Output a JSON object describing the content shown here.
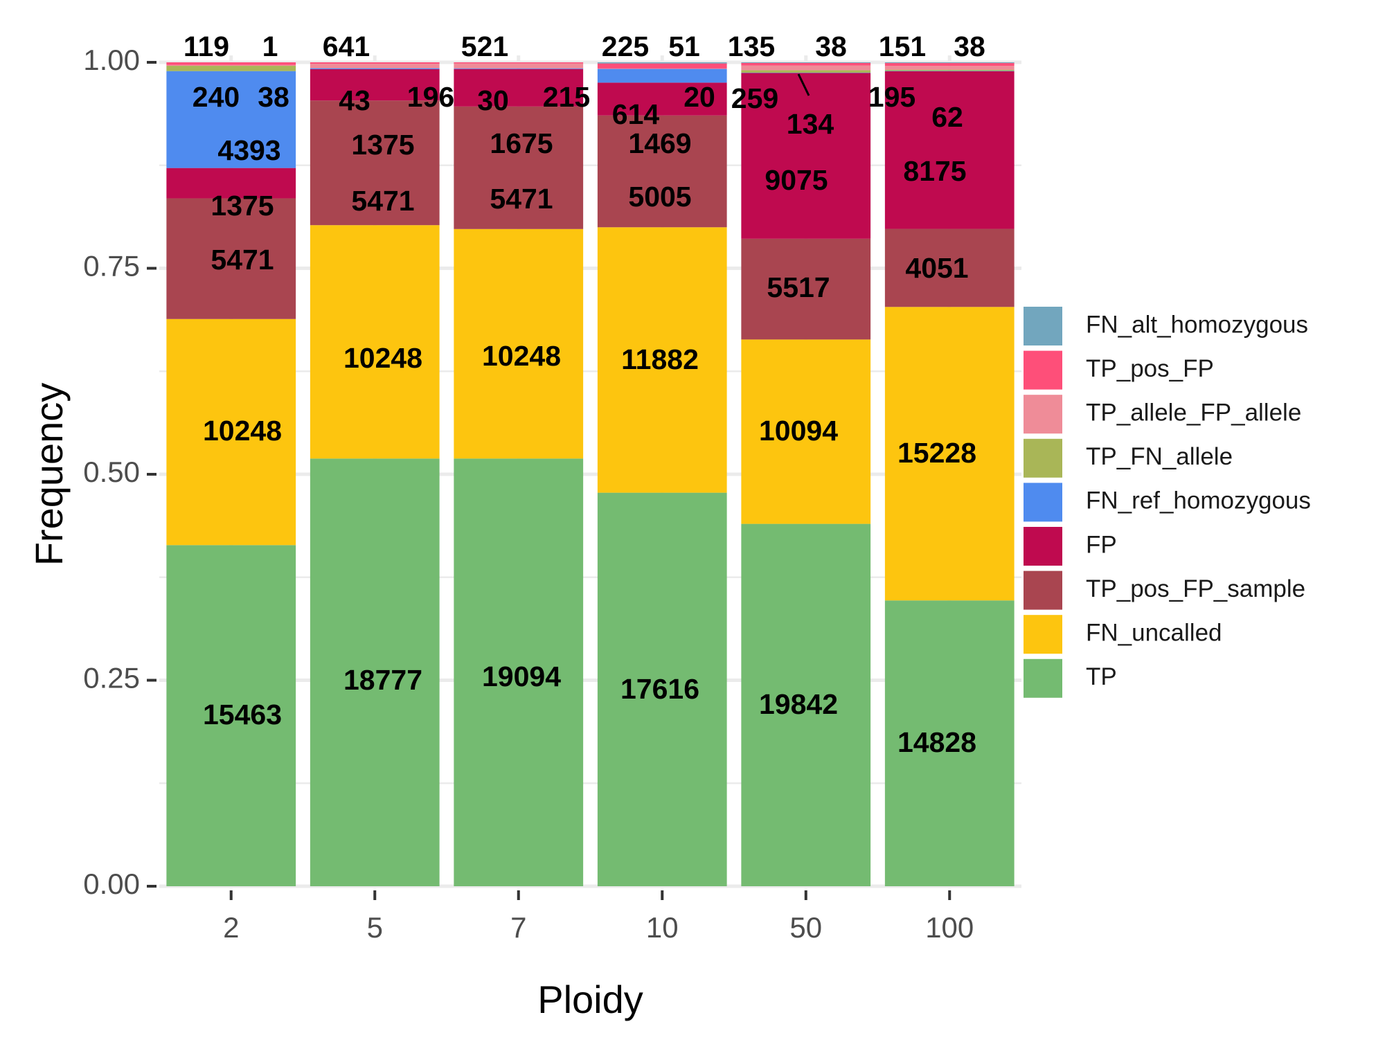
{
  "chart_data": {
    "type": "bar",
    "stacked": true,
    "normalized": true,
    "xlabel": "Ploidy",
    "ylabel": "Frequency",
    "ylim": [
      0,
      1
    ],
    "yticks": [
      "0.00",
      "0.25",
      "0.50",
      "0.75",
      "1.00"
    ],
    "categories": [
      "2",
      "5",
      "7",
      "10",
      "50",
      "100"
    ],
    "grid": true,
    "legend_position": "right",
    "series": [
      {
        "name": "TP",
        "color": "#74BB71",
        "values": [
          15463,
          18777,
          19094,
          17616,
          19842,
          14828
        ]
      },
      {
        "name": "FN_uncalled",
        "color": "#FDC50F",
        "values": [
          10248,
          10248,
          10248,
          11882,
          10094,
          15228
        ]
      },
      {
        "name": "TP_pos_FP_sample",
        "color": "#A94550",
        "values": [
          5471,
          5471,
          5471,
          5005,
          5517,
          4051
        ]
      },
      {
        "name": "FP",
        "color": "#BF0A4F",
        "values": [
          1375,
          1375,
          1675,
          1469,
          9075,
          8175
        ]
      },
      {
        "name": "FN_ref_homozygous",
        "color": "#4F8BEF",
        "values": [
          4393,
          43,
          30,
          614,
          20,
          20
        ]
      },
      {
        "name": "TP_FN_allele",
        "color": "#A9B657",
        "values": [
          240,
          0,
          0,
          0,
          134,
          62
        ]
      },
      {
        "name": "TP_allele_FP_allele",
        "color": "#EF8C98",
        "values": [
          38,
          196,
          215,
          20,
          259,
          195
        ]
      },
      {
        "name": "TP_pos_FP",
        "color": "#FE4F79",
        "values": [
          119,
          64,
          52,
          225,
          135,
          151
        ]
      },
      {
        "name": "FN_alt_homozygous",
        "color": "#72A6BE",
        "values": [
          1,
          1,
          1,
          51,
          38,
          38
        ]
      }
    ],
    "annotations": [
      [
        "15463",
        "10248",
        "5471",
        "1375",
        "4393",
        "240",
        "38",
        "119",
        "1"
      ],
      [
        "18777",
        "10248",
        "5471",
        "1375",
        "43",
        "196",
        "641"
      ],
      [
        "19094",
        "10248",
        "5471",
        "1675",
        "30",
        "215",
        "521"
      ],
      [
        "17616",
        "11882",
        "5005",
        "1469",
        "614",
        "20",
        "225",
        "51"
      ],
      [
        "19842",
        "10094",
        "5517",
        "9075",
        "134",
        "259",
        "135",
        "38"
      ],
      [
        "14828",
        "15228",
        "4051",
        "8175",
        "62",
        "195",
        "151",
        "38"
      ]
    ],
    "legend": [
      {
        "name": "FN_alt_homozygous",
        "color": "#72A6BE"
      },
      {
        "name": "TP_pos_FP",
        "color": "#FE4F79"
      },
      {
        "name": "TP_allele_FP_allele",
        "color": "#EF8C98"
      },
      {
        "name": "TP_FN_allele",
        "color": "#A9B657"
      },
      {
        "name": "FN_ref_homozygous",
        "color": "#4F8BEF"
      },
      {
        "name": "FP",
        "color": "#BF0A4F"
      },
      {
        "name": "TP_pos_FP_sample",
        "color": "#A94550"
      },
      {
        "name": "FN_uncalled",
        "color": "#FDC50F"
      },
      {
        "name": "TP",
        "color": "#74BB71"
      }
    ]
  }
}
